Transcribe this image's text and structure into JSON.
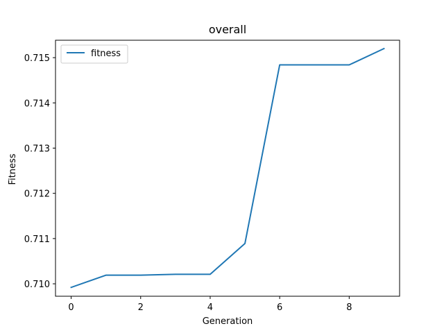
{
  "chart_data": {
    "type": "line",
    "title": "overall",
    "xlabel": "Generation",
    "ylabel": "Fitness",
    "x": [
      0,
      1,
      2,
      3,
      4,
      5,
      6,
      7,
      8,
      9
    ],
    "xlim": [
      -0.45,
      9.45
    ],
    "ylim": [
      0.709725,
      0.715385
    ],
    "xticks": [
      0,
      2,
      4,
      6,
      8
    ],
    "yticks": [
      0.71,
      0.711,
      0.712,
      0.713,
      0.714,
      0.715
    ],
    "xtick_labels": [
      "0",
      "2",
      "4",
      "6",
      "8"
    ],
    "ytick_labels": [
      "0.710",
      "0.711",
      "0.712",
      "0.713",
      "0.714",
      "0.715"
    ],
    "grid": false,
    "legend_position": "upper-left",
    "series": [
      {
        "name": "fitness",
        "color": "#1f77b4",
        "values": [
          0.70992,
          0.71019,
          0.71019,
          0.71021,
          0.71021,
          0.71089,
          0.71484,
          0.71484,
          0.71484,
          0.7152
        ]
      }
    ]
  }
}
